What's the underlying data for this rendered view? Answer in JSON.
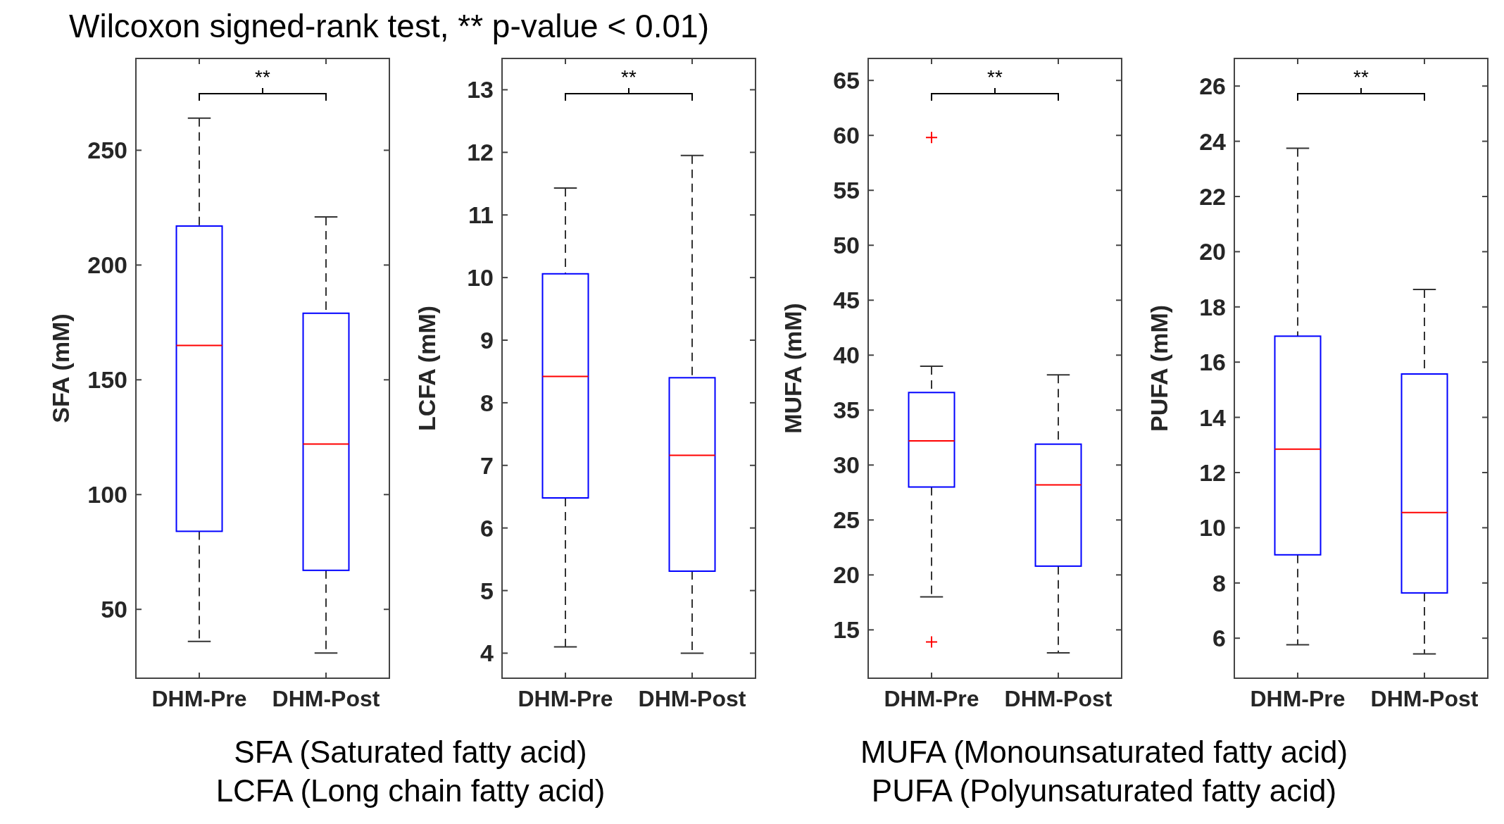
{
  "chart_data": [
    {
      "type": "box",
      "title": "Wilcoxon signed-rank test, ** p-value < 0.01)",
      "ylabel": "SFA (mM)",
      "categories": [
        "DHM-Pre",
        "DHM-Post"
      ],
      "ylim": [
        20,
        290
      ],
      "yticks": [
        50,
        100,
        150,
        200,
        250
      ],
      "annotations": [
        "**",
        "SFA (Saturated fatty acid)"
      ],
      "series": [
        {
          "color": "#0000ff",
          "boxes": [
            {
              "low": 36,
              "q1": 84,
              "median": 165,
              "q3": 217,
              "high": 264
            },
            {
              "low": 31,
              "q1": 67,
              "median": 122,
              "q3": 179,
              "high": 221
            }
          ]
        }
      ]
    },
    {
      "type": "box",
      "ylabel": "LCFA (mM)",
      "categories": [
        "DHM-Pre",
        "DHM-Post"
      ],
      "ylim": [
        3.6,
        13.5
      ],
      "yticks": [
        4,
        5,
        6,
        7,
        8,
        9,
        10,
        11,
        12,
        13
      ],
      "annotations": [
        "**",
        "LCFA (Long chain fatty acid)"
      ],
      "series": [
        {
          "color": "#0000ff",
          "boxes": [
            {
              "low": 4.1,
              "q1": 6.48,
              "median": 8.42,
              "q3": 10.06,
              "high": 11.43
            },
            {
              "low": 4.0,
              "q1": 5.31,
              "median": 7.16,
              "q3": 8.4,
              "high": 11.95
            }
          ]
        }
      ]
    },
    {
      "type": "box",
      "ylabel": "MUFA (mM)",
      "categories": [
        "DHM-Pre",
        "DHM-Post"
      ],
      "ylim": [
        10.6,
        67
      ],
      "yticks": [
        15,
        20,
        25,
        30,
        35,
        40,
        45,
        50,
        55,
        60,
        65
      ],
      "annotations": [
        "**",
        "MUFA (Monounsaturated fatty acid)"
      ],
      "marker": "cross",
      "series": [
        {
          "color": "#0000ff",
          "boxes": [
            {
              "low": 18,
              "q1": 28,
              "median": 32.2,
              "q3": 36.6,
              "high": 39,
              "outliers": [
                59.8,
                13.9
              ]
            },
            {
              "low": 12.9,
              "q1": 20.8,
              "median": 28.2,
              "q3": 31.9,
              "high": 38.2
            }
          ]
        }
      ]
    },
    {
      "type": "box",
      "ylabel": "PUFA (mM)",
      "categories": [
        "DHM-Pre",
        "DHM-Post"
      ],
      "ylim": [
        4.55,
        27
      ],
      "yticks": [
        6,
        8,
        10,
        12,
        14,
        16,
        18,
        20,
        22,
        24,
        26
      ],
      "annotations": [
        "**",
        "PUFA (Polyunsaturated fatty acid)"
      ],
      "series": [
        {
          "color": "#0000ff",
          "boxes": [
            {
              "low": 5.76,
              "q1": 9.02,
              "median": 12.85,
              "q3": 16.94,
              "high": 23.75
            },
            {
              "low": 5.43,
              "q1": 7.64,
              "median": 10.55,
              "q3": 15.57,
              "high": 18.63
            }
          ]
        }
      ]
    }
  ]
}
